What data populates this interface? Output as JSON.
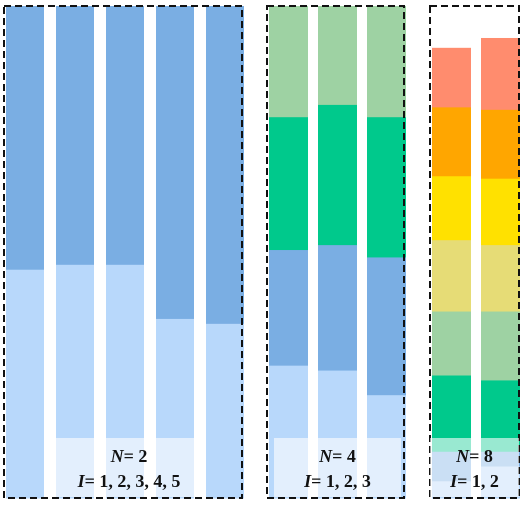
{
  "colors": {
    "blue_light": "#b8d8fb",
    "blue": "#7aaee3",
    "green_light": "#9ed2a3",
    "green": "#00c98c",
    "yellow_khaki": "#e6dc76",
    "yellow": "#ffe100",
    "orange": "#ffa600",
    "salmon": "#ff8c6e",
    "border": "#111111",
    "label_bg": "#ffffff"
  },
  "panels": [
    {
      "name": "panel-n2",
      "caption_n_var": "N",
      "caption_n_value": "= 2",
      "caption_i_var": "I",
      "caption_i_value": "= 1, 2, 3, 4, 5",
      "bars": [
        {
          "segments": [
            {
              "color": "blue_light",
              "fraction": 0.465
            },
            {
              "color": "blue",
              "fraction": 0.535
            }
          ]
        },
        {
          "segments": [
            {
              "color": "blue_light",
              "fraction": 0.475
            },
            {
              "color": "blue",
              "fraction": 0.525
            }
          ]
        },
        {
          "segments": [
            {
              "color": "blue_light",
              "fraction": 0.475
            },
            {
              "color": "blue",
              "fraction": 0.525
            }
          ]
        },
        {
          "segments": [
            {
              "color": "blue_light",
              "fraction": 0.365
            },
            {
              "color": "blue",
              "fraction": 0.635
            }
          ]
        },
        {
          "segments": [
            {
              "color": "blue_light",
              "fraction": 0.355
            },
            {
              "color": "blue",
              "fraction": 0.645
            }
          ]
        }
      ]
    },
    {
      "name": "panel-n4",
      "caption_n_var": "N",
      "caption_n_value": "= 4",
      "caption_i_var": "I",
      "caption_i_value": "= 1, 2, 3",
      "bars": [
        {
          "segments": [
            {
              "color": "blue_light",
              "fraction": 0.27
            },
            {
              "color": "blue",
              "fraction": 0.235
            },
            {
              "color": "green",
              "fraction": 0.27
            },
            {
              "color": "green_light",
              "fraction": 0.225
            }
          ]
        },
        {
          "segments": [
            {
              "color": "blue_light",
              "fraction": 0.26
            },
            {
              "color": "blue",
              "fraction": 0.255
            },
            {
              "color": "green",
              "fraction": 0.285
            },
            {
              "color": "green_light",
              "fraction": 0.2
            }
          ]
        },
        {
          "segments": [
            {
              "color": "blue_light",
              "fraction": 0.21
            },
            {
              "color": "blue",
              "fraction": 0.28
            },
            {
              "color": "green",
              "fraction": 0.285
            },
            {
              "color": "green_light",
              "fraction": 0.225
            }
          ]
        }
      ]
    },
    {
      "name": "panel-n8",
      "caption_n_var": "N",
      "caption_n_value": "= 8",
      "caption_i_var": "I",
      "caption_i_value": "= 1, 2",
      "bars": [
        {
          "segments": [
            {
              "color": "blue_light",
              "fraction": 0.035
            },
            {
              "color": "blue",
              "fraction": 0.06
            },
            {
              "color": "green",
              "fraction": 0.155
            },
            {
              "color": "green_light",
              "fraction": 0.13
            },
            {
              "color": "yellow_khaki",
              "fraction": 0.145
            },
            {
              "color": "yellow",
              "fraction": 0.13
            },
            {
              "color": "orange",
              "fraction": 0.14
            },
            {
              "color": "salmon",
              "fraction": 0.12
            }
          ]
        },
        {
          "segments": [
            {
              "color": "blue_light",
              "fraction": 0.065
            },
            {
              "color": "blue",
              "fraction": 0.03
            },
            {
              "color": "green",
              "fraction": 0.145
            },
            {
              "color": "green_light",
              "fraction": 0.14
            },
            {
              "color": "yellow_khaki",
              "fraction": 0.135
            },
            {
              "color": "yellow",
              "fraction": 0.135
            },
            {
              "color": "orange",
              "fraction": 0.14
            },
            {
              "color": "salmon",
              "fraction": 0.145
            }
          ]
        }
      ]
    }
  ]
}
